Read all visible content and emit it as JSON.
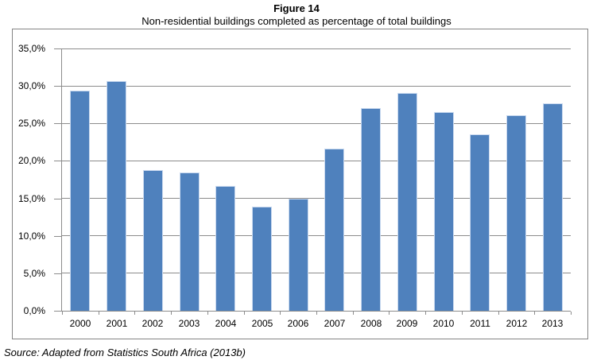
{
  "figure": {
    "title": "Figure 14",
    "subtitle": "Non-residential buildings completed as percentage of total buildings",
    "source": "Source: Adapted from Statistics South Africa (2013b)"
  },
  "chart_data": {
    "type": "bar",
    "title": "Figure 14",
    "subtitle": "Non-residential buildings completed as percentage of total buildings",
    "categories": [
      "2000",
      "2001",
      "2002",
      "2003",
      "2004",
      "2005",
      "2006",
      "2007",
      "2008",
      "2009",
      "2010",
      "2011",
      "2012",
      "2013"
    ],
    "values": [
      29.4,
      30.6,
      18.8,
      18.5,
      16.7,
      13.9,
      15.0,
      21.6,
      27.0,
      29.1,
      26.5,
      23.5,
      26.1,
      27.7
    ],
    "xlabel": "",
    "ylabel": "",
    "ylim": [
      0,
      35
    ],
    "ytick_step": 5,
    "ytick_labels": [
      "0,0%",
      "5,0%",
      "10,0%",
      "15,0%",
      "20,0%",
      "25,0%",
      "30,0%",
      "35,0%"
    ],
    "grid": true,
    "legend": "none",
    "bar_color": "#4f81bd",
    "bar_edge_color": "#c9d9ef",
    "gridline_color": "#8c8c8c",
    "axis_color": "#8c8c8c",
    "frame_color": "#848484"
  }
}
